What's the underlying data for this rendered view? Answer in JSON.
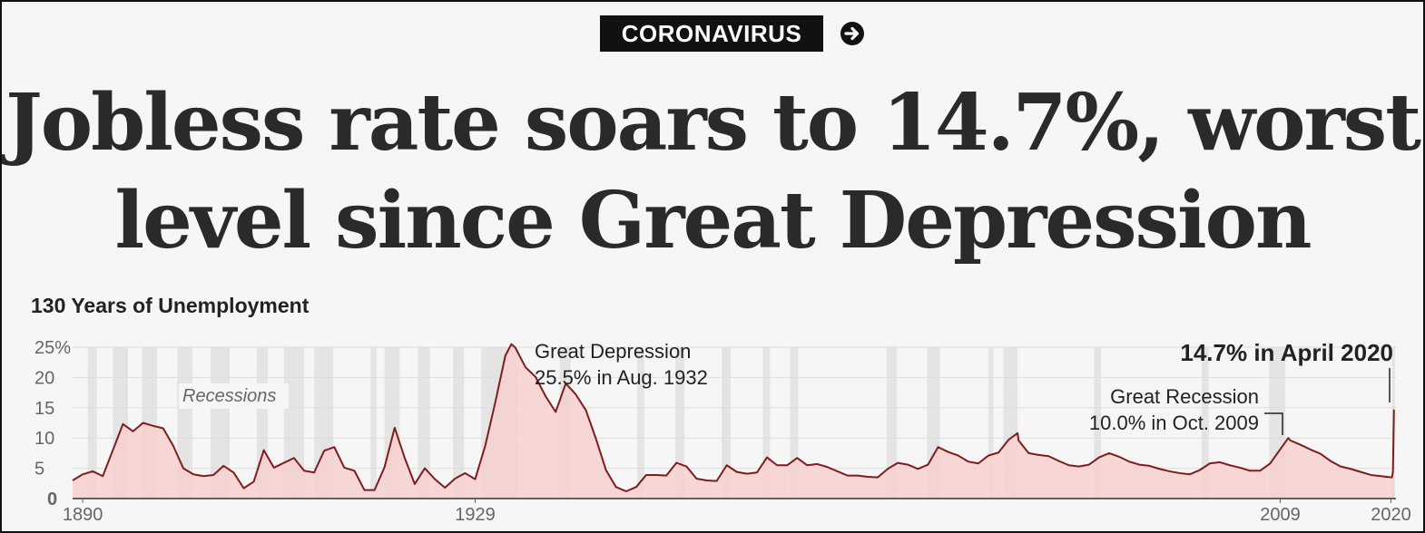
{
  "kicker": {
    "label": "CORONAVIRUS",
    "icon": "arrow-right-circle-icon"
  },
  "headline": {
    "line1": "Jobless rate soars to 14.7%, worst",
    "line2": "level since Great Depression"
  },
  "chart_data": {
    "type": "area",
    "title": "130 Years of Unemployment",
    "xlabel": "",
    "ylabel": "",
    "xlim": [
      1889,
      2020.5
    ],
    "ylim": [
      0,
      25
    ],
    "y_ticks": [
      0,
      5,
      10,
      15,
      20,
      25
    ],
    "y_tick_labels": [
      "0",
      "5",
      "10",
      "15",
      "20",
      "25%"
    ],
    "x_tick_labels": [
      {
        "x": 1890,
        "label": "1890"
      },
      {
        "x": 1929,
        "label": "1929"
      },
      {
        "x": 2009,
        "label": "2009"
      },
      {
        "x": 2020,
        "label": "2020"
      }
    ],
    "grid": true,
    "colors": {
      "line": "#7f1d1d",
      "fill": "#f7d0d0",
      "recession": "#e4e4e4",
      "grid": "#dddddd"
    },
    "recessions_label": "Recessions",
    "recessions": [
      [
        1890.5,
        1891.4
      ],
      [
        1893.0,
        1894.5
      ],
      [
        1895.9,
        1897.4
      ],
      [
        1899.4,
        1900.9
      ],
      [
        1902.7,
        1904.6
      ],
      [
        1907.3,
        1908.4
      ],
      [
        1910.0,
        1912.0
      ],
      [
        1913.0,
        1914.9
      ],
      [
        1918.6,
        1919.2
      ],
      [
        1920.0,
        1921.5
      ],
      [
        1923.3,
        1924.5
      ],
      [
        1926.8,
        1927.9
      ],
      [
        1929.6,
        1933.2
      ],
      [
        1937.4,
        1938.5
      ],
      [
        1945.1,
        1945.8
      ],
      [
        1948.9,
        1949.8
      ],
      [
        1953.5,
        1954.4
      ],
      [
        1957.6,
        1958.3
      ],
      [
        1960.3,
        1961.1
      ],
      [
        1969.9,
        1970.9
      ],
      [
        1973.9,
        1975.2
      ],
      [
        1980.0,
        1980.5
      ],
      [
        1981.5,
        1982.9
      ],
      [
        1990.5,
        1991.2
      ],
      [
        2001.2,
        2001.9
      ],
      [
        2007.9,
        2009.5
      ],
      [
        2020.1,
        2020.4
      ]
    ],
    "series": [
      {
        "values": [
          [
            1889,
            3.0
          ],
          [
            1890,
            4.0
          ],
          [
            1891,
            4.5
          ],
          [
            1892,
            3.7
          ],
          [
            1893,
            8.0
          ],
          [
            1894,
            12.3
          ],
          [
            1895,
            11.1
          ],
          [
            1896,
            12.5
          ],
          [
            1897,
            12.0
          ],
          [
            1898,
            11.6
          ],
          [
            1899,
            8.7
          ],
          [
            1900,
            5.0
          ],
          [
            1901,
            4.0
          ],
          [
            1902,
            3.7
          ],
          [
            1903,
            3.9
          ],
          [
            1904,
            5.4
          ],
          [
            1905,
            4.3
          ],
          [
            1906,
            1.7
          ],
          [
            1907,
            2.8
          ],
          [
            1908,
            8.0
          ],
          [
            1909,
            5.1
          ],
          [
            1910,
            5.9
          ],
          [
            1911,
            6.7
          ],
          [
            1912,
            4.6
          ],
          [
            1913,
            4.3
          ],
          [
            1914,
            7.9
          ],
          [
            1915,
            8.5
          ],
          [
            1916,
            5.1
          ],
          [
            1917,
            4.6
          ],
          [
            1918,
            1.4
          ],
          [
            1919,
            1.4
          ],
          [
            1920,
            5.2
          ],
          [
            1921,
            11.7
          ],
          [
            1922,
            6.7
          ],
          [
            1923,
            2.4
          ],
          [
            1924,
            5.0
          ],
          [
            1925,
            3.2
          ],
          [
            1926,
            1.8
          ],
          [
            1927,
            3.3
          ],
          [
            1928,
            4.2
          ],
          [
            1929,
            3.2
          ],
          [
            1930,
            8.7
          ],
          [
            1931,
            15.9
          ],
          [
            1932,
            23.6
          ],
          [
            1932.6,
            25.5
          ],
          [
            1933,
            24.9
          ],
          [
            1934,
            21.7
          ],
          [
            1935,
            20.1
          ],
          [
            1936,
            16.9
          ],
          [
            1937,
            14.3
          ],
          [
            1938,
            19.0
          ],
          [
            1939,
            17.2
          ],
          [
            1940,
            14.6
          ],
          [
            1941,
            9.9
          ],
          [
            1942,
            4.7
          ],
          [
            1943,
            1.9
          ],
          [
            1944,
            1.2
          ],
          [
            1945,
            1.9
          ],
          [
            1946,
            3.9
          ],
          [
            1947,
            3.9
          ],
          [
            1948,
            3.8
          ],
          [
            1949,
            5.9
          ],
          [
            1950,
            5.3
          ],
          [
            1951,
            3.3
          ],
          [
            1952,
            3.0
          ],
          [
            1953,
            2.9
          ],
          [
            1954,
            5.5
          ],
          [
            1955,
            4.4
          ],
          [
            1956,
            4.1
          ],
          [
            1957,
            4.3
          ],
          [
            1958,
            6.8
          ],
          [
            1959,
            5.5
          ],
          [
            1960,
            5.5
          ],
          [
            1961,
            6.7
          ],
          [
            1962,
            5.5
          ],
          [
            1963,
            5.7
          ],
          [
            1964,
            5.2
          ],
          [
            1965,
            4.5
          ],
          [
            1966,
            3.8
          ],
          [
            1967,
            3.8
          ],
          [
            1968,
            3.6
          ],
          [
            1969,
            3.5
          ],
          [
            1970,
            4.9
          ],
          [
            1971,
            5.9
          ],
          [
            1972,
            5.6
          ],
          [
            1973,
            4.9
          ],
          [
            1974,
            5.6
          ],
          [
            1975,
            8.5
          ],
          [
            1976,
            7.7
          ],
          [
            1977,
            7.1
          ],
          [
            1978,
            6.1
          ],
          [
            1979,
            5.8
          ],
          [
            1980,
            7.1
          ],
          [
            1981,
            7.6
          ],
          [
            1982,
            9.7
          ],
          [
            1982.9,
            10.8
          ],
          [
            1983,
            9.6
          ],
          [
            1984,
            7.5
          ],
          [
            1985,
            7.2
          ],
          [
            1986,
            7.0
          ],
          [
            1987,
            6.2
          ],
          [
            1988,
            5.5
          ],
          [
            1989,
            5.3
          ],
          [
            1990,
            5.6
          ],
          [
            1991,
            6.8
          ],
          [
            1992,
            7.5
          ],
          [
            1993,
            6.9
          ],
          [
            1994,
            6.1
          ],
          [
            1995,
            5.6
          ],
          [
            1996,
            5.4
          ],
          [
            1997,
            4.9
          ],
          [
            1998,
            4.5
          ],
          [
            1999,
            4.2
          ],
          [
            2000,
            4.0
          ],
          [
            2001,
            4.7
          ],
          [
            2002,
            5.8
          ],
          [
            2003,
            6.0
          ],
          [
            2004,
            5.5
          ],
          [
            2005,
            5.1
          ],
          [
            2006,
            4.6
          ],
          [
            2007,
            4.6
          ],
          [
            2008,
            5.8
          ],
          [
            2009.8,
            10.0
          ],
          [
            2010,
            9.6
          ],
          [
            2011,
            8.9
          ],
          [
            2012,
            8.1
          ],
          [
            2013,
            7.4
          ],
          [
            2014,
            6.2
          ],
          [
            2015,
            5.3
          ],
          [
            2016,
            4.9
          ],
          [
            2017,
            4.4
          ],
          [
            2018,
            3.9
          ],
          [
            2019,
            3.7
          ],
          [
            2020.1,
            3.5
          ],
          [
            2020.2,
            4.4
          ],
          [
            2020.3,
            14.7
          ]
        ]
      }
    ],
    "annotations": [
      {
        "title": "Great Depression",
        "detail": "25.5% in Aug. 1932"
      },
      {
        "title": "Great Recession",
        "detail": "10.0% in Oct. 2009"
      },
      {
        "title": "14.7% in April 2020"
      }
    ]
  }
}
